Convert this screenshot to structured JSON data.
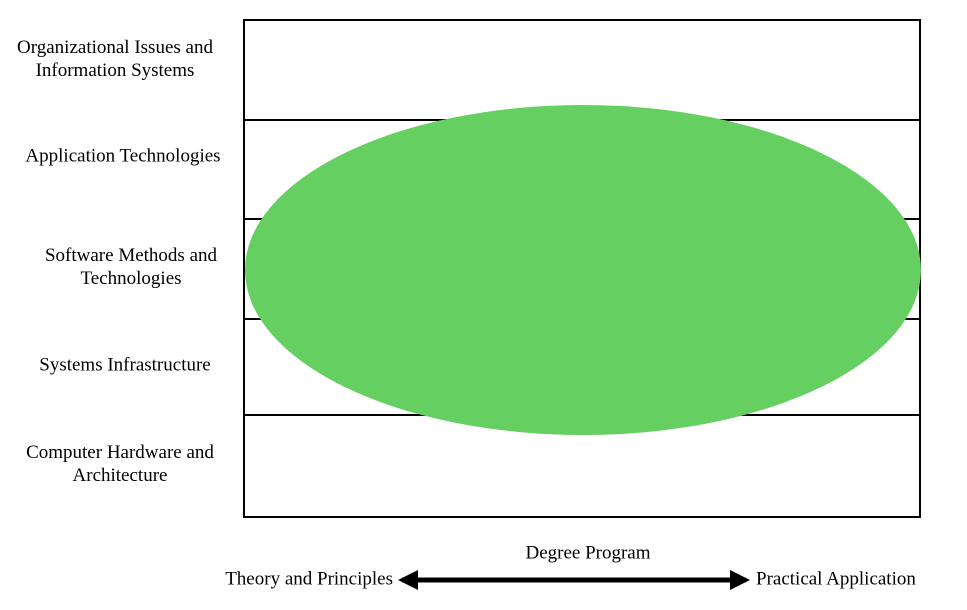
{
  "rows": [
    {
      "label": [
        "Organizational Issues and",
        "Information Systems"
      ]
    },
    {
      "label": [
        "Application Technologies"
      ]
    },
    {
      "label": [
        "Software Methods and",
        "Technologies"
      ]
    },
    {
      "label": [
        "Systems Infrastructure"
      ]
    },
    {
      "label": [
        "Computer Hardware and",
        "Architecture"
      ]
    }
  ],
  "axis": {
    "title": "Degree Program",
    "left": "Theory and Principles",
    "right": "Practical Application"
  }
}
